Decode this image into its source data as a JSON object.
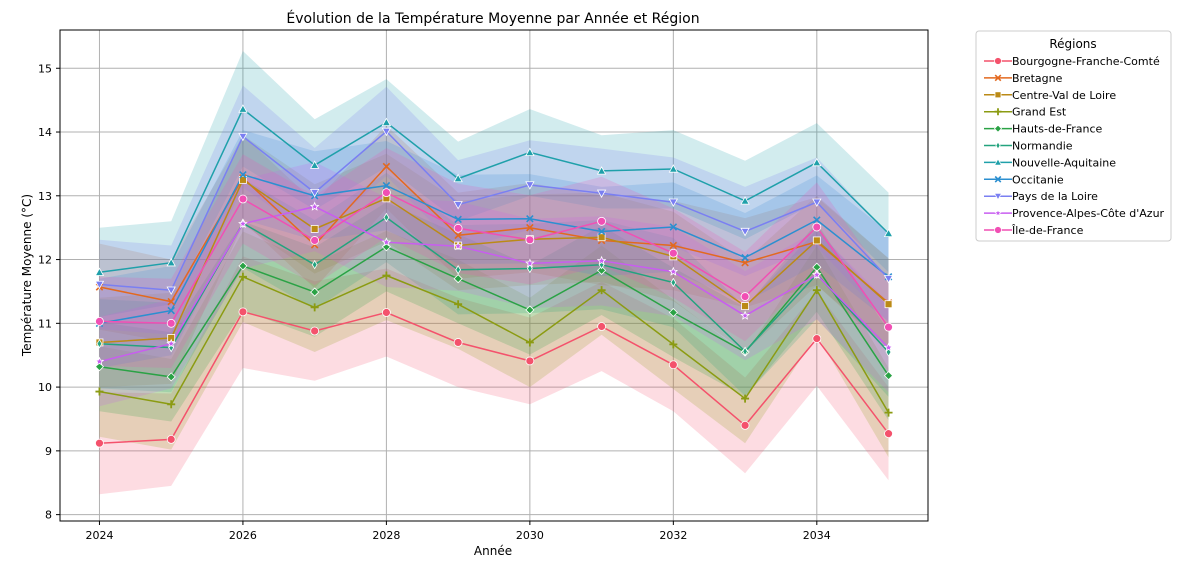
{
  "chart_data": {
    "type": "line",
    "title": "Évolution de la Température Moyenne par Année et Région",
    "xlabel": "Année",
    "ylabel": "Température Moyenne (°C)",
    "xlim": [
      2023.45,
      2035.55
    ],
    "ylim": [
      7.9,
      15.6
    ],
    "xticks": [
      2024,
      2026,
      2028,
      2030,
      2032,
      2034
    ],
    "yticks": [
      8,
      9,
      10,
      11,
      12,
      13,
      14,
      15
    ],
    "grid": true,
    "confidence_band": true,
    "legend_title": "Régions",
    "legend_position": "outside-top-right",
    "x": [
      2024,
      2025,
      2026,
      2027,
      2028,
      2029,
      2030,
      2031,
      2032,
      2033,
      2034,
      2035
    ],
    "series": [
      {
        "name": "Bourgogne-Franche-Comté",
        "color": "#f4526c",
        "marker": "circle",
        "values": [
          9.12,
          9.18,
          11.18,
          10.88,
          11.17,
          10.7,
          10.41,
          10.95,
          10.35,
          9.4,
          10.76,
          9.27
        ],
        "ci_low": [
          8.32,
          8.45,
          10.3,
          10.1,
          10.48,
          10.0,
          9.73,
          10.25,
          9.62,
          8.65,
          10.02,
          8.54
        ],
        "ci_high": [
          9.92,
          9.9,
          12.05,
          11.66,
          11.86,
          11.4,
          11.09,
          11.65,
          11.08,
          10.15,
          11.5,
          10.0
        ]
      },
      {
        "name": "Bretagne",
        "color": "#e3691f",
        "marker": "x",
        "values": [
          11.57,
          11.34,
          13.28,
          12.23,
          13.46,
          12.38,
          12.5,
          12.3,
          12.22,
          11.95,
          12.28,
          11.32
        ],
        "ci_low": [
          10.9,
          10.7,
          12.6,
          11.55,
          12.8,
          11.7,
          11.8,
          11.6,
          11.52,
          11.25,
          11.6,
          10.62
        ],
        "ci_high": [
          12.25,
          12.0,
          13.95,
          12.9,
          14.1,
          13.05,
          13.2,
          13.0,
          12.92,
          12.65,
          12.98,
          12.02
        ]
      },
      {
        "name": "Centre-Val de Loire",
        "color": "#bb8a16",
        "marker": "square",
        "values": [
          10.7,
          10.77,
          13.25,
          12.48,
          12.96,
          12.22,
          12.32,
          12.35,
          12.05,
          11.27,
          12.3,
          11.3
        ],
        "ci_low": [
          10.0,
          10.05,
          12.55,
          11.78,
          12.28,
          11.52,
          11.6,
          11.65,
          11.35,
          10.55,
          11.6,
          10.58
        ],
        "ci_high": [
          11.4,
          11.48,
          13.95,
          13.18,
          13.66,
          12.92,
          13.02,
          13.05,
          12.75,
          11.98,
          13.0,
          12.02
        ]
      },
      {
        "name": "Grand Est",
        "color": "#8b9b12",
        "marker": "plus",
        "values": [
          9.93,
          9.73,
          11.73,
          11.25,
          11.75,
          11.3,
          10.7,
          11.52,
          10.67,
          9.82,
          11.52,
          9.6
        ],
        "ci_low": [
          9.22,
          9.02,
          11.02,
          10.55,
          11.05,
          10.6,
          10.0,
          10.82,
          9.97,
          9.12,
          10.82,
          8.9
        ],
        "ci_high": [
          10.64,
          10.44,
          12.44,
          11.95,
          12.45,
          12.0,
          11.4,
          12.22,
          11.37,
          10.52,
          12.22,
          10.3
        ]
      },
      {
        "name": "Hauts-de-France",
        "color": "#2aa245",
        "marker": "diamond",
        "values": [
          10.32,
          10.16,
          11.9,
          11.49,
          12.2,
          11.7,
          11.21,
          11.83,
          11.17,
          10.55,
          11.88,
          10.18
        ],
        "ci_low": [
          9.62,
          9.46,
          11.2,
          10.79,
          11.5,
          11.0,
          10.51,
          11.13,
          10.47,
          9.85,
          11.18,
          9.48
        ],
        "ci_high": [
          11.02,
          10.86,
          12.6,
          12.19,
          12.9,
          12.4,
          11.91,
          12.53,
          11.87,
          11.25,
          12.58,
          10.88
        ]
      },
      {
        "name": "Normandie",
        "color": "#23a37e",
        "marker": "thin-diamond",
        "values": [
          10.68,
          10.62,
          12.57,
          11.92,
          12.66,
          11.84,
          11.86,
          11.92,
          11.64,
          10.56,
          11.77,
          10.55
        ],
        "ci_low": [
          9.98,
          9.92,
          11.87,
          11.22,
          11.96,
          11.14,
          11.16,
          11.22,
          10.94,
          9.86,
          11.07,
          9.85
        ],
        "ci_high": [
          11.38,
          11.32,
          13.27,
          12.62,
          13.36,
          12.54,
          12.56,
          12.62,
          12.34,
          11.26,
          12.47,
          11.25
        ]
      },
      {
        "name": "Nouvelle-Aquitaine",
        "color": "#1fa0aa",
        "marker": "triangle-up",
        "values": [
          11.8,
          11.95,
          14.36,
          13.48,
          14.15,
          13.27,
          13.68,
          13.39,
          13.42,
          12.92,
          13.52,
          12.41
        ],
        "ci_low": [
          11.1,
          11.3,
          13.46,
          12.78,
          13.45,
          12.6,
          13.0,
          12.8,
          12.8,
          12.32,
          12.9,
          11.8
        ],
        "ci_high": [
          12.5,
          12.6,
          15.27,
          14.2,
          14.83,
          13.85,
          14.36,
          13.95,
          14.03,
          13.55,
          14.14,
          13.05
        ]
      },
      {
        "name": "Occitanie",
        "color": "#2b8fd0",
        "marker": "x",
        "values": [
          11.0,
          11.2,
          13.33,
          13.0,
          13.16,
          12.63,
          12.64,
          12.44,
          12.51,
          12.03,
          12.62,
          11.73
        ],
        "ci_low": [
          10.3,
          10.5,
          12.63,
          12.3,
          12.46,
          11.93,
          11.94,
          11.74,
          11.81,
          11.33,
          11.92,
          11.03
        ],
        "ci_high": [
          11.7,
          11.9,
          14.03,
          13.7,
          13.86,
          13.33,
          13.34,
          13.14,
          13.21,
          12.73,
          13.32,
          12.43
        ]
      },
      {
        "name": "Pays de la Loire",
        "color": "#7a7ff2",
        "marker": "triangle-down",
        "values": [
          11.61,
          11.52,
          13.93,
          13.05,
          14.01,
          12.86,
          13.17,
          13.04,
          12.9,
          12.44,
          12.9,
          11.7
        ],
        "ci_low": [
          10.91,
          10.82,
          13.13,
          12.35,
          13.31,
          12.16,
          12.47,
          12.34,
          12.2,
          11.74,
          12.2,
          11.0
        ],
        "ci_high": [
          12.31,
          12.22,
          14.73,
          13.75,
          14.71,
          13.56,
          13.87,
          13.74,
          13.6,
          13.14,
          13.6,
          12.4
        ]
      },
      {
        "name": "Provence-Alpes-Côte d'Azur",
        "color": "#c85df0",
        "marker": "star",
        "values": [
          10.4,
          10.68,
          12.56,
          12.83,
          12.27,
          12.21,
          11.94,
          11.98,
          11.81,
          11.12,
          11.76,
          10.62
        ],
        "ci_low": [
          9.7,
          9.98,
          11.86,
          12.13,
          11.57,
          11.51,
          11.24,
          11.28,
          11.11,
          10.42,
          11.06,
          9.92
        ],
        "ci_high": [
          11.1,
          11.38,
          13.26,
          13.53,
          12.97,
          12.91,
          12.64,
          12.68,
          12.51,
          11.82,
          12.46,
          11.32
        ]
      },
      {
        "name": "Île-de-France",
        "color": "#f14fb4",
        "marker": "circle",
        "values": [
          11.03,
          11.0,
          12.95,
          12.3,
          13.05,
          12.49,
          12.31,
          12.6,
          12.1,
          11.42,
          12.51,
          10.94
        ],
        "ci_low": [
          10.33,
          10.3,
          12.25,
          11.6,
          12.35,
          11.79,
          11.61,
          11.9,
          11.4,
          10.72,
          11.81,
          10.24
        ],
        "ci_high": [
          11.73,
          11.7,
          13.65,
          13.0,
          13.75,
          13.19,
          13.01,
          13.3,
          12.8,
          12.12,
          13.21,
          11.64
        ]
      }
    ]
  }
}
